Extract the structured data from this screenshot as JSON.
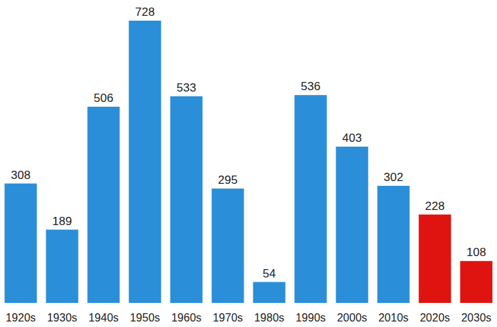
{
  "chart_data": {
    "type": "bar",
    "categories": [
      "1920s",
      "1930s",
      "1940s",
      "1950s",
      "1960s",
      "1970s",
      "1980s",
      "1990s",
      "2000s",
      "2010s",
      "2020s",
      "2030s"
    ],
    "values": [
      308,
      189,
      506,
      728,
      533,
      295,
      54,
      536,
      403,
      302,
      228,
      108
    ],
    "colors": [
      "#2a8fd8",
      "#2a8fd8",
      "#2a8fd8",
      "#2a8fd8",
      "#2a8fd8",
      "#2a8fd8",
      "#2a8fd8",
      "#2a8fd8",
      "#2a8fd8",
      "#2a8fd8",
      "#df1410",
      "#df1410"
    ],
    "ylim": [
      0,
      728
    ],
    "data_labels": true,
    "tick_labels": "x"
  }
}
